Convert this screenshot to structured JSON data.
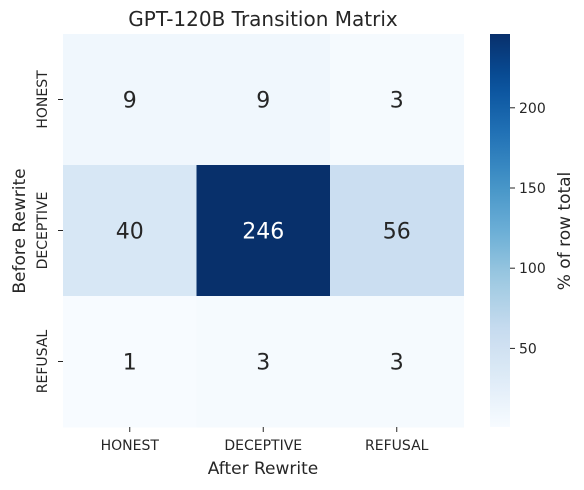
{
  "chart_data": {
    "type": "heatmap",
    "title": "GPT-120B Transition Matrix",
    "xlabel": "After Rewrite",
    "ylabel": "Before Rewrite",
    "x_categories": [
      "HONEST",
      "DECEPTIVE",
      "REFUSAL"
    ],
    "y_categories": [
      "HONEST",
      "DECEPTIVE",
      "REFUSAL"
    ],
    "values": [
      [
        9,
        9,
        3
      ],
      [
        40,
        246,
        56
      ],
      [
        1,
        3,
        3
      ]
    ],
    "colorbar": {
      "label": "% of row total",
      "min": 1,
      "max": 246,
      "ticks": [
        50,
        100,
        150,
        200
      ],
      "colormap": "Blues"
    },
    "colors": {
      "low": "#f7fbff",
      "high": "#08306b",
      "text_light": "#ffffff",
      "text_dark": "#262626"
    }
  }
}
